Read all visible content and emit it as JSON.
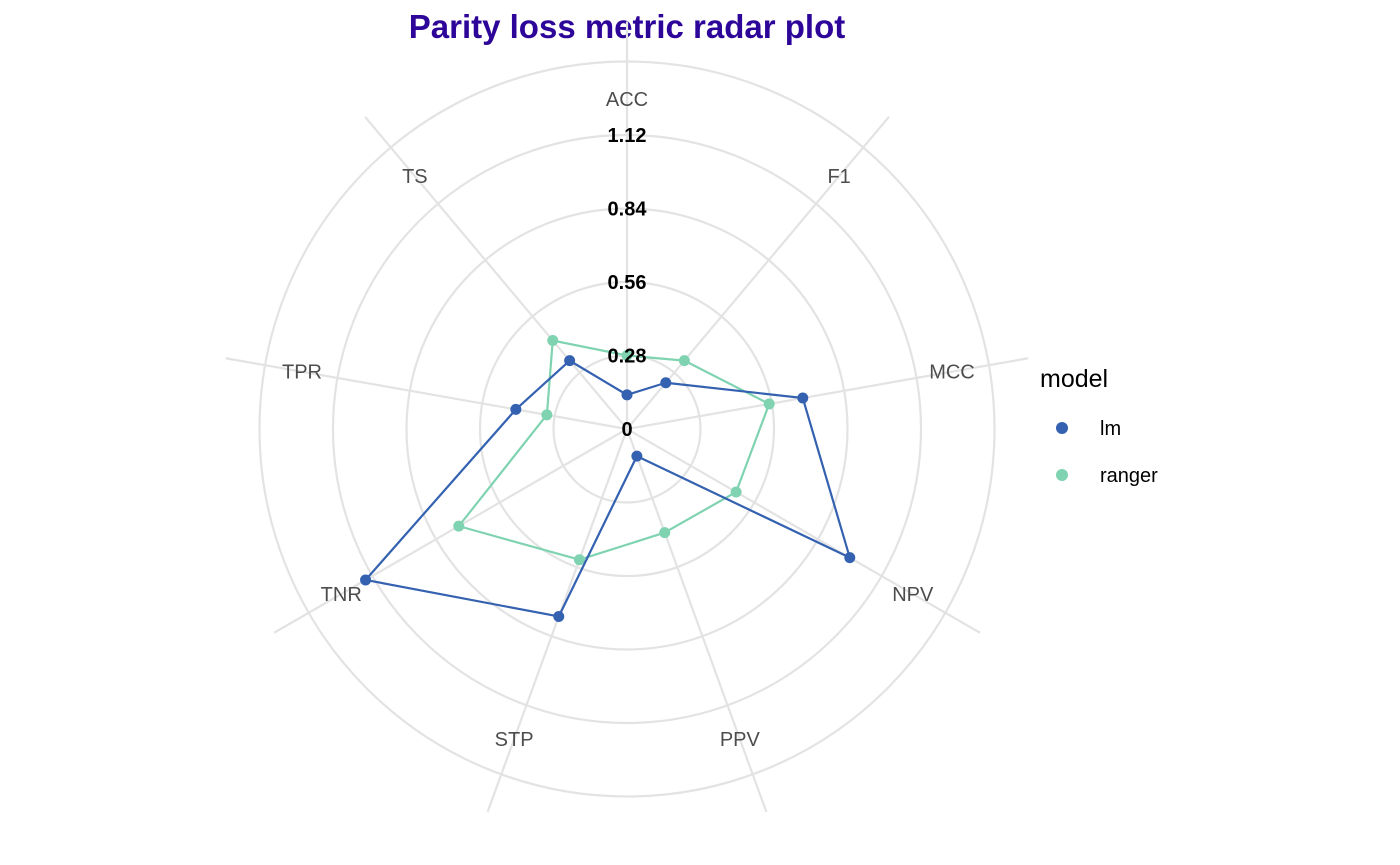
{
  "chart_data": {
    "type": "radar",
    "title": "Parity loss metric radar plot",
    "axes": [
      "ACC",
      "F1",
      "MCC",
      "NPV",
      "PPV",
      "STP",
      "TNR",
      "TPR",
      "TS"
    ],
    "radial_ticks": [
      "0",
      "0.28",
      "0.56",
      "0.84",
      "1.12"
    ],
    "radial_range": [
      0,
      1.12
    ],
    "grid": true,
    "legend": {
      "title": "model",
      "position": "right"
    },
    "series": [
      {
        "name": "lm",
        "color": "#3461b0",
        "values": [
          0.13,
          0.23,
          0.68,
          0.98,
          0.11,
          0.76,
          1.15,
          0.43,
          0.34
        ]
      },
      {
        "name": "ranger",
        "color": "#7fd3b1",
        "values": [
          0.28,
          0.34,
          0.55,
          0.48,
          0.42,
          0.53,
          0.74,
          0.31,
          0.44
        ]
      }
    ]
  }
}
